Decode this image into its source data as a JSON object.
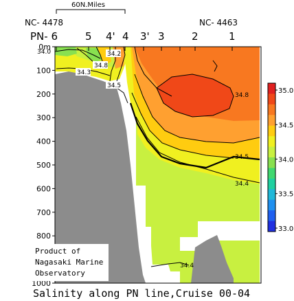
{
  "chart_data": {
    "type": "heatmap",
    "title": "Salinity along PN line,Cruise 00-04",
    "scale_bar": "60N.Miles",
    "endpoint_left": "NC- 4478",
    "endpoint_right": "NC- 4463",
    "stations": [
      {
        "label": "PN- 6"
      },
      {
        "label": "5"
      },
      {
        "label": "4'"
      },
      {
        "label": "4"
      },
      {
        "label": "3'"
      },
      {
        "label": "3"
      },
      {
        "label": "2"
      },
      {
        "label": "1"
      }
    ],
    "y_axis": {
      "unit_label": "0m",
      "ticks": [
        "0m",
        "100",
        "200",
        "300",
        "400",
        "500",
        "600",
        "700",
        "800",
        "900",
        "1000"
      ],
      "ylim": [
        0,
        1000
      ],
      "inverted": true
    },
    "colorbar": {
      "ticks": [
        "35.0",
        "34.5",
        "34.0",
        "33.5",
        "33.0"
      ],
      "range": [
        32.95,
        35.1
      ],
      "colors": [
        "#e02020",
        "#f04818",
        "#f87820",
        "#ffa030",
        "#ffcc10",
        "#f0f020",
        "#c8f040",
        "#88e050",
        "#40d870",
        "#20d0a0",
        "#20b8d8",
        "#2090f0",
        "#2060f0",
        "#2030e0"
      ]
    },
    "contour_labels": [
      "34.0",
      "34.3",
      "34.8",
      "34.2",
      "34.5",
      "34.8",
      "34.5",
      "34.4",
      "34.4"
    ],
    "note": [
      "Product of",
      "Nagasaki Marine",
      "Observatory"
    ]
  }
}
